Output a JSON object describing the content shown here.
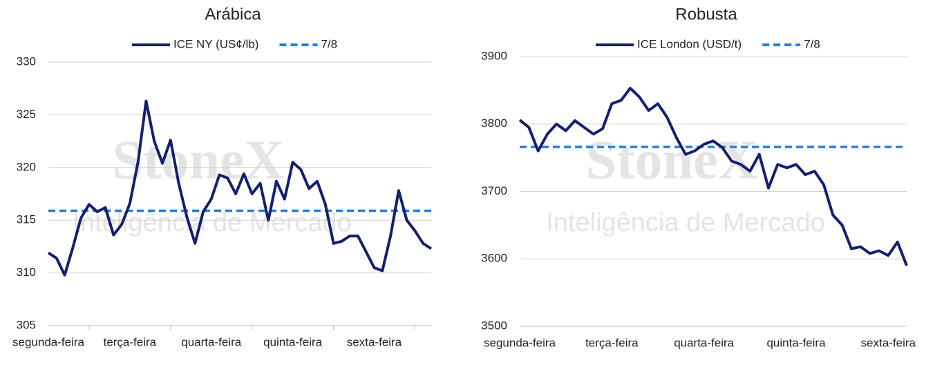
{
  "chart_data": [
    {
      "type": "line",
      "title": "Arábica",
      "watermark": [
        "StoneX",
        "Inteligência de Mercado"
      ],
      "categories": [
        "segunda-feira",
        null,
        null,
        null,
        null,
        null,
        null,
        null,
        null,
        null,
        "terça-feira",
        null,
        null,
        null,
        null,
        null,
        null,
        null,
        null,
        null,
        "quarta-feira",
        null,
        null,
        null,
        null,
        null,
        null,
        null,
        null,
        null,
        "quinta-feira",
        null,
        null,
        null,
        null,
        null,
        null,
        null,
        null,
        null,
        "sexta-feira",
        null,
        null,
        null,
        null,
        null,
        null,
        null
      ],
      "series": [
        {
          "name": "ICE NY (US¢/lb)",
          "color": "#141f6e",
          "values": [
            311.9,
            311.4,
            309.8,
            312.4,
            315.2,
            316.5,
            315.8,
            316.2,
            313.6,
            314.6,
            316.6,
            320.5,
            326.3,
            322.5,
            320.4,
            322.6,
            318.5,
            315.3,
            312.8,
            315.8,
            317.0,
            319.3,
            319.0,
            317.5,
            319.4,
            317.5,
            318.5,
            315.0,
            318.7,
            317.0,
            320.5,
            319.8,
            318.0,
            318.7,
            316.5,
            312.8,
            313.0,
            313.5,
            313.5,
            312.0,
            310.5,
            310.2,
            313.5,
            317.8,
            315.0,
            314.0,
            312.8,
            312.3
          ]
        }
      ],
      "reference": {
        "name": "7/8",
        "value": 315.9,
        "color": "#1a7fe0"
      },
      "ylim": [
        305,
        330
      ],
      "yticks": [
        305,
        310,
        315,
        320,
        325,
        330
      ],
      "grid": true
    },
    {
      "type": "line",
      "title": "Robusta",
      "watermark": [
        "StoneX",
        "Inteligência de Mercado"
      ],
      "categories": [
        "segunda-feira",
        null,
        null,
        null,
        null,
        null,
        null,
        null,
        null,
        null,
        "terça-feira",
        null,
        null,
        null,
        null,
        null,
        null,
        null,
        null,
        null,
        "quarta-feira",
        null,
        null,
        null,
        null,
        null,
        null,
        null,
        null,
        null,
        "quinta-feira",
        null,
        null,
        null,
        null,
        null,
        null,
        null,
        null,
        null,
        "sexta-feira",
        null,
        null
      ],
      "series": [
        {
          "name": "ICE London (USD/t)",
          "color": "#141f6e",
          "values": [
            3806,
            3795,
            3760,
            3785,
            3800,
            3790,
            3805,
            3795,
            3785,
            3793,
            3830,
            3835,
            3853,
            3840,
            3820,
            3830,
            3810,
            3780,
            3755,
            3760,
            3770,
            3775,
            3765,
            3745,
            3740,
            3730,
            3755,
            3705,
            3740,
            3735,
            3740,
            3725,
            3730,
            3710,
            3665,
            3650,
            3615,
            3618,
            3608,
            3612,
            3605,
            3625,
            3590
          ]
        }
      ],
      "reference": {
        "name": "7/8",
        "value": 3766,
        "color": "#1a7fe0"
      },
      "ylim": [
        3500,
        3900
      ],
      "yticks": [
        3500,
        3600,
        3700,
        3800,
        3900
      ],
      "grid": true
    }
  ]
}
